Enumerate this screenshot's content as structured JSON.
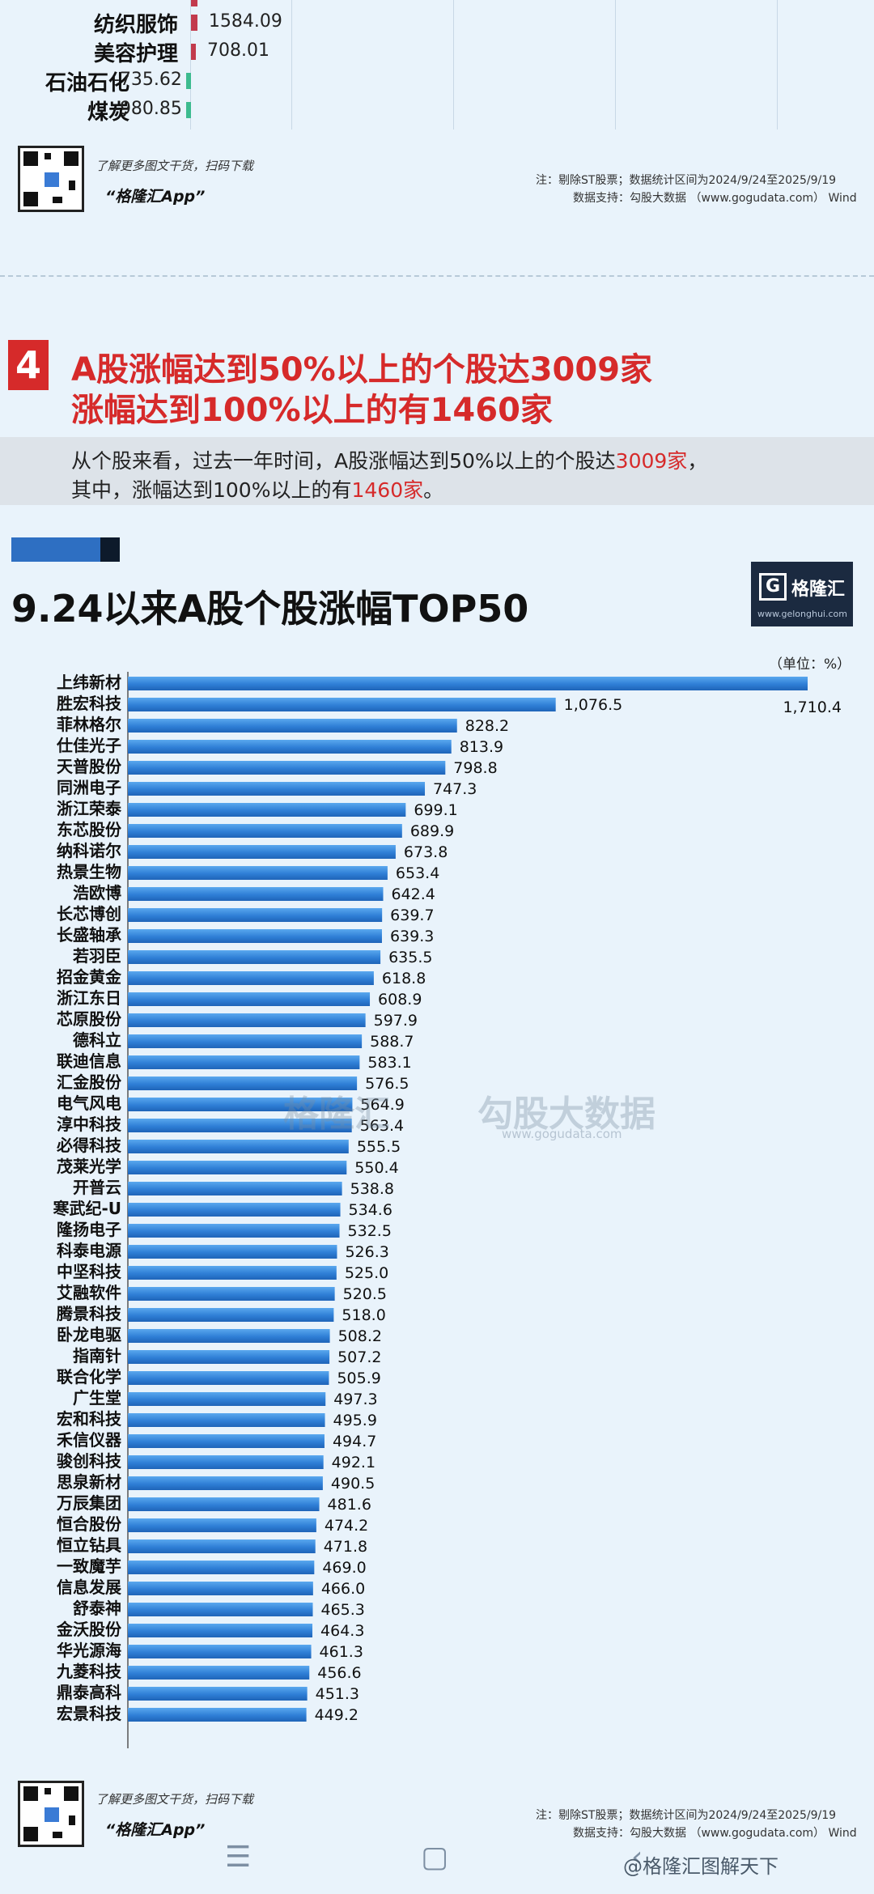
{
  "prev_section": {
    "rows": [
      {
        "label": "纺织服饰",
        "value": 1584.09
      },
      {
        "label": "美容护理",
        "value": 708.01
      },
      {
        "label": "石油石化",
        "value": -735.62
      },
      {
        "label": "煤炭",
        "value": -980.85
      }
    ],
    "qr_desc": "了解更多图文干货，扫码下载",
    "qr_app": "“格隆汇App”",
    "note_line1": "注：剔除ST股票；数据统计区间为2024/9/24至2025/9/19",
    "note_line2": "数据支持：勾股大数据 （www.gogudata.com） Wind"
  },
  "section4": {
    "number": "4",
    "title_line1": "A股涨幅达到50%以上的个股达3009家",
    "title_line2": "涨幅达到100%以上的有1460家",
    "summary_line1_a": "从个股来看，过去一年时间，A股涨幅达到50%以上的个股达",
    "summary_line1_b": "3009家",
    "summary_line1_c": "，",
    "summary_line2_a": "其中，涨幅达到100%以上的有",
    "summary_line2_b": "1460家",
    "summary_line2_c": "。"
  },
  "brand": {
    "letter": "G",
    "name": "格隆汇",
    "url": "www.gelonghui.com"
  },
  "watermark": {
    "left": "格隆汇",
    "right": "勾股大数据",
    "sub": "www.gogudata.com"
  },
  "chart_data": {
    "type": "bar",
    "orientation": "horizontal",
    "title": "9.24以来A股个股涨幅TOP50",
    "unit": "（单位：%）",
    "categories": [
      "上纬新材",
      "胜宏科技",
      "菲林格尔",
      "仕佳光子",
      "天普股份",
      "同洲电子",
      "浙江荣泰",
      "东芯股份",
      "纳科诺尔",
      "热景生物",
      "浩欧博",
      "长芯博创",
      "长盛轴承",
      "若羽臣",
      "招金黄金",
      "浙江东日",
      "芯原股份",
      "德科立",
      "联迪信息",
      "汇金股份",
      "电气风电",
      "淳中科技",
      "必得科技",
      "茂莱光学",
      "开普云",
      "寒武纪-U",
      "隆扬电子",
      "科泰电源",
      "中坚科技",
      "艾融软件",
      "腾景科技",
      "卧龙电驱",
      "指南针",
      "联合化学",
      "广生堂",
      "宏和科技",
      "禾信仪器",
      "骏创科技",
      "思泉新材",
      "万辰集团",
      "恒合股份",
      "恒立钻具",
      "一致魔芋",
      "信息发展",
      "舒泰神",
      "金沃股份",
      "华光源海",
      "九菱科技",
      "鼎泰高科",
      "宏景科技"
    ],
    "values": [
      1710.4,
      1076.5,
      828.2,
      813.9,
      798.8,
      747.3,
      699.1,
      689.9,
      673.8,
      653.4,
      642.4,
      639.7,
      639.3,
      635.5,
      618.8,
      608.9,
      597.9,
      588.7,
      583.1,
      576.5,
      564.9,
      563.4,
      555.5,
      550.4,
      538.8,
      534.6,
      532.5,
      526.3,
      525.0,
      520.5,
      518.0,
      508.2,
      507.2,
      505.9,
      497.3,
      495.9,
      494.7,
      492.1,
      490.5,
      481.6,
      474.2,
      471.8,
      469.0,
      466.0,
      465.3,
      464.3,
      461.3,
      456.6,
      451.3,
      449.2
    ],
    "value_labels": [
      "1,710.4",
      "1,076.5",
      "828.2",
      "813.9",
      "798.8",
      "747.3",
      "699.1",
      "689.9",
      "673.8",
      "653.4",
      "642.4",
      "639.7",
      "639.3",
      "635.5",
      "618.8",
      "608.9",
      "597.9",
      "588.7",
      "583.1",
      "576.5",
      "564.9",
      "563.4",
      "555.5",
      "550.4",
      "538.8",
      "534.6",
      "532.5",
      "526.3",
      "525.0",
      "520.5",
      "518.0",
      "508.2",
      "507.2",
      "505.9",
      "497.3",
      "495.9",
      "494.7",
      "492.1",
      "490.5",
      "481.6",
      "474.2",
      "471.8",
      "469.0",
      "466.0",
      "465.3",
      "464.3",
      "461.3",
      "456.6",
      "451.3",
      "449.2"
    ],
    "xlim": [
      0,
      1710.4
    ],
    "grid": false,
    "bar_color": "#2f7fd6"
  },
  "footer": {
    "qr_desc": "了解更多图文干货，扫码下载",
    "qr_app": "“格隆汇App”",
    "note_line1": "注：剔除ST股票；数据统计区间为2024/9/24至2025/9/19",
    "note_line2": "数据支持：勾股大数据 （www.gogudata.com） Wind",
    "weibo": "@格隆汇图解天下"
  }
}
